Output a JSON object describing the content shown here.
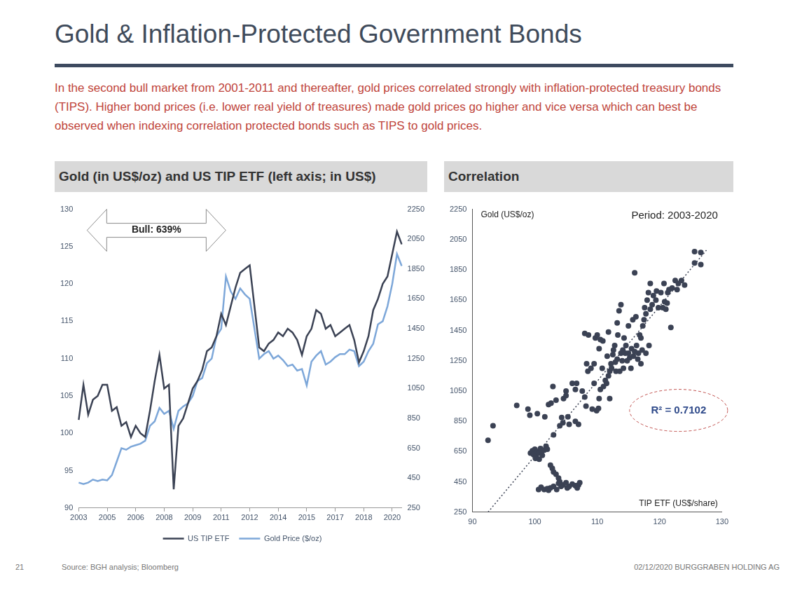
{
  "title": "Gold & Inflation-Protected Government Bonds",
  "subtitle": "In the second bull market from 2001-2011 and thereafter, gold prices correlated strongly with inflation-protected treasury bonds (TIPS). Higher bond prices (i.e. lower real yield of treasures) made gold prices go higher and vice versa which can best be observed when indexing correlation protected bonds such as TIPS to gold prices.",
  "page_number": 21,
  "source": "Source: BGH analysis; Bloomberg",
  "footer": "02/12/2020 BURGGRABEN HOLDING AG",
  "chart_data": [
    {
      "type": "line",
      "title": "Gold (in US$/oz) and US TIP ETF (left axis; in US$)",
      "annotation": "Bull: 639%",
      "categories": [
        "2003",
        null,
        null,
        null,
        null,
        null,
        "2005",
        null,
        null,
        null,
        null,
        null,
        "2006",
        null,
        null,
        null,
        null,
        null,
        "2008",
        null,
        null,
        null,
        null,
        null,
        "2009",
        null,
        null,
        null,
        null,
        null,
        "2011",
        null,
        null,
        null,
        null,
        null,
        "2012",
        null,
        null,
        null,
        null,
        null,
        "2014",
        null,
        null,
        null,
        null,
        null,
        "2015",
        null,
        null,
        null,
        null,
        null,
        "2017",
        null,
        null,
        null,
        null,
        null,
        "2018",
        null,
        null,
        null,
        null,
        null,
        "2020",
        null,
        null
      ],
      "series": [
        {
          "name": "US TIP ETF",
          "color": "#3b4254",
          "values": [
            101.8,
            106.5,
            102.5,
            104.5,
            105,
            106.5,
            106.5,
            103,
            103.5,
            101,
            101.5,
            99.5,
            101,
            100,
            99.5,
            103,
            107,
            110.5,
            106,
            106.5,
            92.5,
            101,
            102,
            104,
            106,
            107,
            108.5,
            111,
            111.5,
            113,
            116,
            114.5,
            117,
            119.5,
            121.5,
            122,
            122.5,
            117,
            111.5,
            111,
            112,
            112.5,
            113.5,
            113,
            114,
            113.5,
            112.5,
            110.5,
            113,
            114,
            116.5,
            116,
            114,
            114.5,
            113,
            113.5,
            114,
            114.5,
            112.5,
            109.5,
            111,
            113,
            116.5,
            118,
            120,
            121,
            124,
            127,
            125.3
          ]
        },
        {
          "name": "Gold Price ($/oz)",
          "color": "#7da7d9",
          "axis": "y2",
          "values": [
            420,
            410,
            420,
            440,
            430,
            440,
            435,
            470,
            560,
            650,
            640,
            660,
            670,
            680,
            700,
            800,
            830,
            920,
            880,
            900,
            780,
            900,
            930,
            950,
            1000,
            1100,
            1120,
            1220,
            1250,
            1400,
            1450,
            1800,
            1700,
            1650,
            1720,
            1680,
            1650,
            1450,
            1250,
            1280,
            1300,
            1250,
            1270,
            1240,
            1200,
            1210,
            1170,
            1180,
            1070,
            1230,
            1270,
            1300,
            1210,
            1230,
            1260,
            1280,
            1280,
            1310,
            1300,
            1200,
            1230,
            1300,
            1350,
            1480,
            1500,
            1600,
            1750,
            1950,
            1870
          ]
        }
      ],
      "ylim": [
        90,
        130
      ],
      "yticks": [
        90,
        95,
        100,
        105,
        110,
        115,
        120,
        125,
        130
      ],
      "y2lim": [
        250,
        2250
      ],
      "y2ticks": [
        250,
        450,
        650,
        850,
        1050,
        1250,
        1450,
        1650,
        1850,
        2050,
        2250
      ],
      "grid": false,
      "legend": "bottom"
    },
    {
      "type": "scatter",
      "title": "Correlation",
      "subtitle": "Period: 2003-2020",
      "xlabel": "TIP ETF (US$/share)",
      "ylabel": "Gold (US$/oz)",
      "annotation": "R² = 0.7102",
      "color": "#3b4254",
      "marker": "circle",
      "x": [
        92.5,
        93.3,
        97.1,
        98.9,
        99.2,
        100.4,
        101.6,
        102.2,
        102.6,
        103.4,
        99.3,
        99.6,
        99.8,
        100.0,
        100.2,
        100.4,
        100.6,
        100.9,
        101.2,
        101.5,
        101.8,
        100.1,
        100.7,
        101.1,
        102.0,
        102.5,
        102.8,
        103.0,
        103.4,
        103.8,
        100.6,
        101.0,
        101.5,
        102.0,
        102.5,
        103.0,
        103.5,
        104.0,
        104.5,
        105.0,
        105.5,
        106.0,
        106.5,
        107.0,
        107.2,
        105.2,
        104.2,
        106.8,
        103.8,
        102.2,
        103.0,
        104.0,
        104.3,
        104.6,
        105.0,
        104.5,
        105.5,
        105.3,
        106.5,
        106.7,
        107.0,
        106.5,
        108.0,
        108.5,
        108.3,
        109.0,
        109.5,
        109.7,
        110.0,
        110.5,
        108.0,
        108.6,
        109.5,
        109.9,
        110.2,
        110.3,
        110.5,
        111.0,
        111.3,
        112.0,
        111.5,
        112.0,
        112.2,
        112.5,
        113.0,
        112.8,
        111.6,
        110.9,
        110.3,
        111.8,
        113.5,
        113.8,
        113.2,
        114.0,
        114.2,
        114.5,
        114.8,
        115.0,
        115.2,
        115.5,
        115.8,
        116.0,
        116.3,
        116.6,
        116.8,
        117.0,
        117.3,
        117.5,
        117.6,
        117.8,
        118.0,
        118.2,
        118.5,
        118.8,
        119.0,
        119.4,
        119.8,
        120.2,
        120.5,
        120.8,
        121.0,
        121.2,
        121.5,
        122.0,
        122.5,
        121.8,
        122.8,
        116.0,
        118.5,
        119.5,
        120.7,
        121.3,
        113.3,
        114.3,
        115.0,
        115.7,
        116.2,
        114.6,
        113.8,
        112.6,
        113.2,
        114.1,
        115.4,
        116.5,
        117.2,
        117.8,
        118.3,
        117.0,
        112.3,
        111.8,
        113.6,
        105.0,
        102.9,
        106.0,
        107.6,
        108.2,
        109.2,
        125.6,
        126.6,
        125.6,
        126.6,
        123.5,
        124.0,
        123.0,
        110.8,
        112.9
      ],
      "values": [
        725,
        820,
        955,
        930,
        890,
        900,
        880,
        960,
        970,
        990,
        640,
        655,
        630,
        665,
        620,
        650,
        640,
        670,
        625,
        660,
        685,
        605,
        600,
        650,
        665,
        560,
        540,
        515,
        500,
        475,
        400,
        415,
        400,
        405,
        410,
        420,
        400,
        450,
        430,
        445,
        420,
        435,
        425,
        430,
        445,
        410,
        420,
        410,
        440,
        395,
        760,
        820,
        875,
        1000,
        1020,
        840,
        830,
        880,
        1060,
        1100,
        830,
        850,
        1010,
        1180,
        1230,
        1200,
        1230,
        1400,
        1420,
        1390,
        1430,
        1420,
        1100,
        920,
        935,
        1000,
        1060,
        1080,
        1120,
        1000,
        1100,
        1180,
        1230,
        1290,
        1180,
        1350,
        1280,
        1380,
        1330,
        1440,
        1580,
        1620,
        1500,
        1250,
        1200,
        1300,
        1250,
        1300,
        1270,
        1330,
        1280,
        1310,
        1350,
        1300,
        1420,
        1400,
        1480,
        1520,
        1600,
        1560,
        1650,
        1700,
        1590,
        1620,
        1680,
        1650,
        1600,
        1700,
        1600,
        1640,
        1590,
        1630,
        1720,
        1730,
        1780,
        1470,
        1720,
        1830,
        1760,
        1710,
        1760,
        1700,
        1420,
        1400,
        1480,
        1520,
        1540,
        1350,
        1300,
        1320,
        1260,
        1320,
        1200,
        1260,
        1320,
        1300,
        1350,
        1230,
        1200,
        1150,
        1180,
        1050,
        1080,
        1100,
        1050,
        950,
        930,
        1970,
        1965,
        1895,
        1885,
        1780,
        1750,
        1760,
        1200,
        1240
      ],
      "trend_line": {
        "x": [
          92.5,
          127.5
        ],
        "values": [
          250,
          1980
        ],
        "line_style": "dotted"
      },
      "xlim": [
        90,
        130
      ],
      "xticks": [
        90,
        100,
        110,
        120,
        130
      ],
      "ylim": [
        250,
        2250
      ],
      "yticks": [
        250,
        450,
        650,
        850,
        1050,
        1250,
        1450,
        1650,
        1850,
        2050,
        2250
      ],
      "grid": false
    }
  ]
}
